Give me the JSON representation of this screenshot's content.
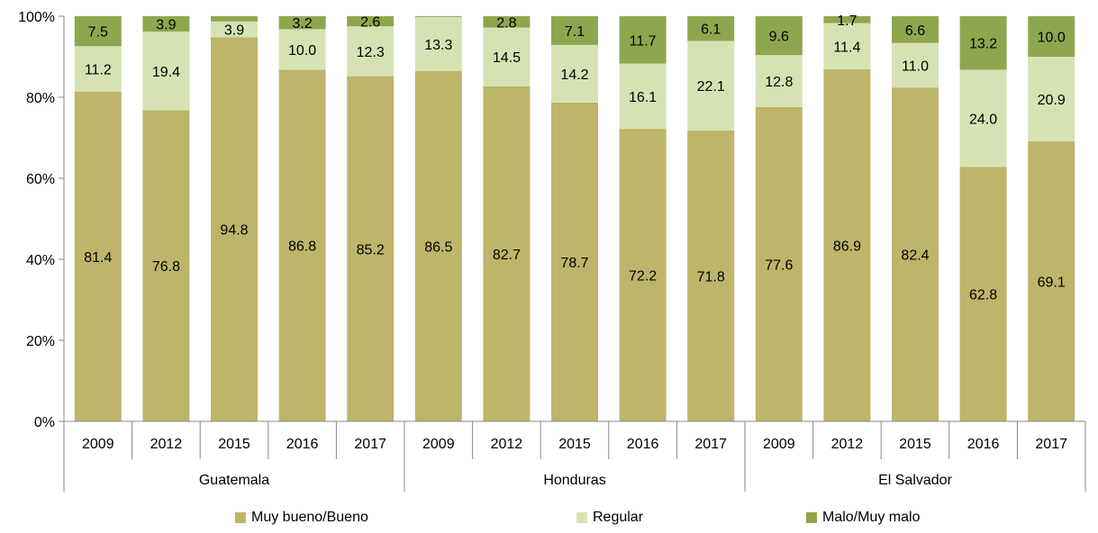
{
  "chart_data": {
    "type": "bar",
    "stacked": true,
    "percent_axis": true,
    "groups": [
      {
        "name": "Guatemala",
        "years": [
          "2009",
          "2012",
          "2015",
          "2016",
          "2017"
        ]
      },
      {
        "name": "Honduras",
        "years": [
          "2009",
          "2012",
          "2015",
          "2016",
          "2017"
        ]
      },
      {
        "name": "El Salvador",
        "years": [
          "2009",
          "2012",
          "2015",
          "2016",
          "2017"
        ]
      }
    ],
    "series": [
      {
        "name": "Muy bueno/Bueno",
        "color": "#bdb56a",
        "values": [
          81.4,
          76.8,
          94.8,
          86.8,
          85.2,
          86.5,
          82.7,
          78.7,
          72.2,
          71.8,
          77.6,
          86.9,
          82.4,
          62.8,
          69.1
        ]
      },
      {
        "name": "Regular",
        "color": "#d7e2b4",
        "values": [
          11.2,
          19.4,
          3.9,
          10.0,
          12.3,
          13.3,
          14.5,
          14.2,
          16.1,
          22.1,
          12.8,
          11.4,
          11.0,
          24.0,
          20.9
        ]
      },
      {
        "name": "Malo/Muy malo",
        "color": "#8ea64e",
        "values": [
          7.5,
          3.9,
          null,
          3.2,
          2.6,
          null,
          2.8,
          7.1,
          11.7,
          6.1,
          9.6,
          1.7,
          6.6,
          13.2,
          10.0
        ]
      }
    ],
    "ylim": [
      0,
      100
    ],
    "yticks": [
      "0%",
      "20%",
      "40%",
      "60%",
      "80%",
      "100%"
    ],
    "legend_position": "bottom",
    "grid": false
  }
}
